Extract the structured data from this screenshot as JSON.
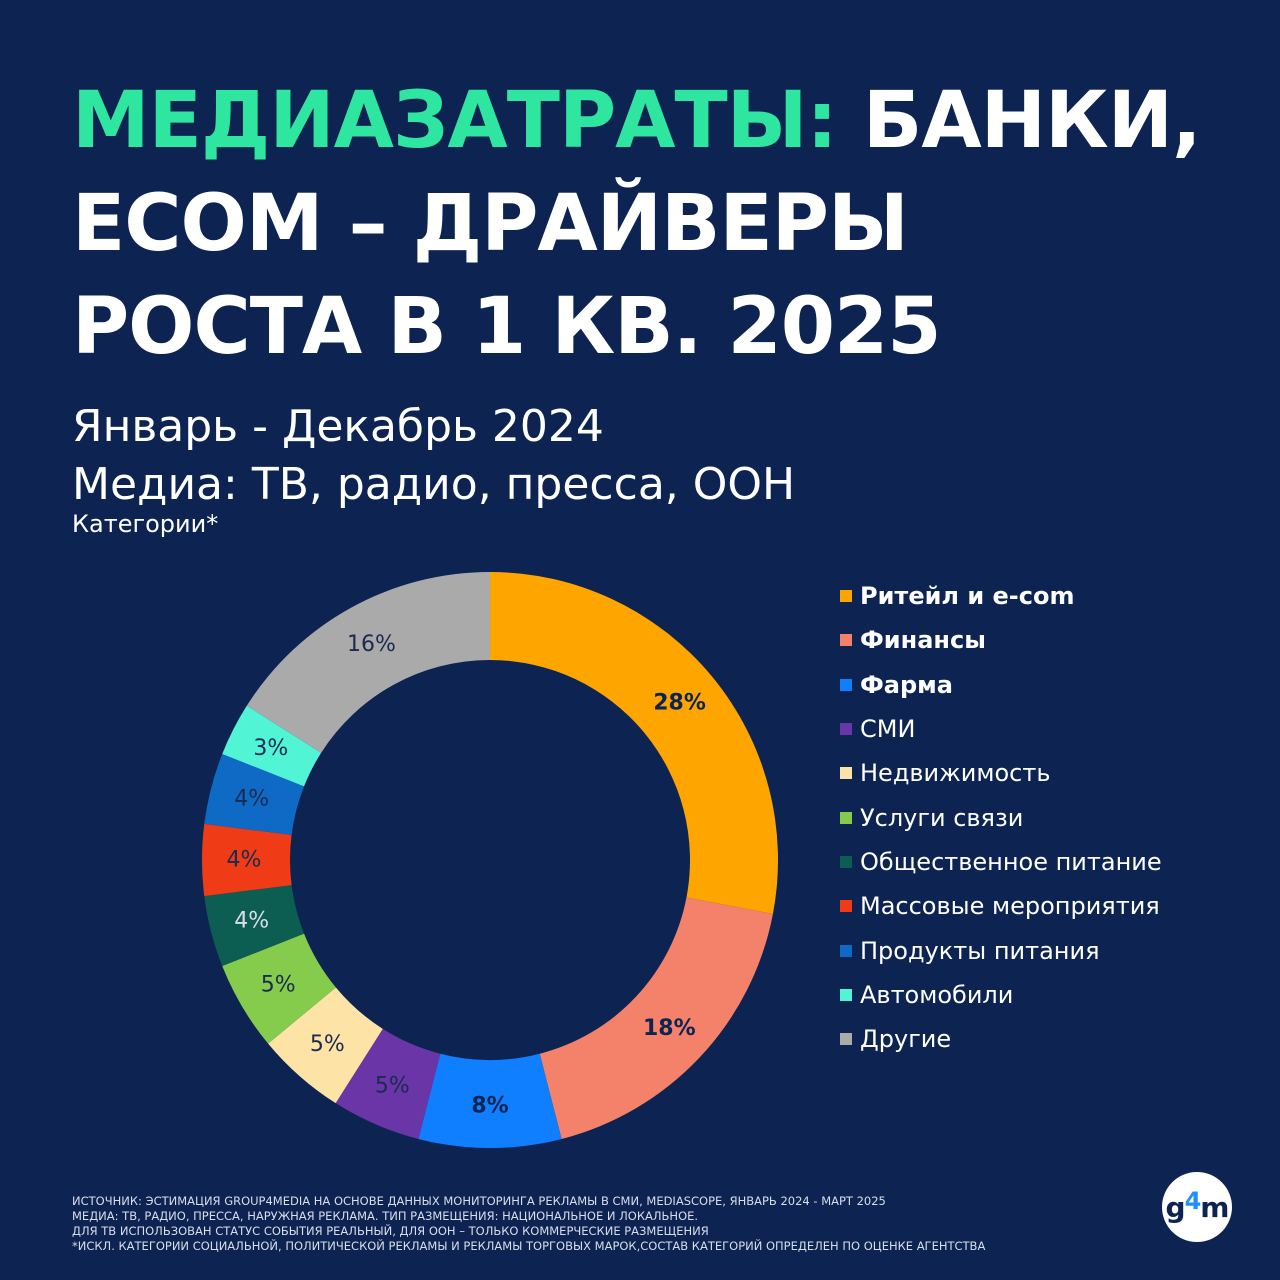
{
  "title": {
    "accent": "МЕДИАЗАТРАТЫ:",
    "line1_rest": "БАНКИ,",
    "line2": "ECOM – ДРАЙВЕРЫ",
    "line3": "РОСТА В 1 КВ. 2025"
  },
  "subtitle": {
    "period": "Январь - Декабрь 2024",
    "media": "Медиа: ТВ, радио, пресса, ООН"
  },
  "categories_label": "Категории*",
  "chart_data": {
    "type": "pie",
    "donut": true,
    "slices": [
      {
        "label": "Ритейл и e-com",
        "value": 28,
        "value_label": "28%",
        "color": "#ffa500",
        "bold": true,
        "text_color": "#0d2452"
      },
      {
        "label": "Финансы",
        "value": 18,
        "value_label": "18%",
        "color": "#f4826a",
        "bold": true,
        "text_color": "#0d2452"
      },
      {
        "label": "Фарма",
        "value": 8,
        "value_label": "8%",
        "color": "#0f7fff",
        "bold": true,
        "text_color": "#0d2452"
      },
      {
        "label": "СМИ",
        "value": 5,
        "value_label": "5%",
        "color": "#6a35a6",
        "bold": false,
        "text_color": "#1a2a50"
      },
      {
        "label": "Недвижимость",
        "value": 5,
        "value_label": "5%",
        "color": "#fde3a5",
        "bold": false,
        "text_color": "#1a2a50"
      },
      {
        "label": "Услуги связи",
        "value": 5,
        "value_label": "5%",
        "color": "#86cc4c",
        "bold": false,
        "text_color": "#1a2a50"
      },
      {
        "label": "Общественное питание",
        "value": 4,
        "value_label": "4%",
        "color": "#0c5e53",
        "bold": false,
        "text_color": "#d8deea"
      },
      {
        "label": "Массовые мероприятия",
        "value": 4,
        "value_label": "4%",
        "color": "#ef3b16",
        "bold": false,
        "text_color": "#1a2a50"
      },
      {
        "label": "Продукты питания",
        "value": 4,
        "value_label": "4%",
        "color": "#0f6ac6",
        "bold": false,
        "text_color": "#1a2a50"
      },
      {
        "label": "Автомобили",
        "value": 3,
        "value_label": "3%",
        "color": "#51f5d6",
        "bold": false,
        "text_color": "#1a2a50"
      },
      {
        "label": "Другие",
        "value": 16,
        "value_label": "16%",
        "color": "#aaaaaa",
        "bold": false,
        "text_color": "#1a2a50"
      }
    ]
  },
  "footnote": {
    "line1": "ИСТОЧНИК: ЭСТИМАЦИЯ GROUP4MEDIA НА ОСНОВЕ ДАННЫХ МОНИТОРИНГА РЕКЛАМЫ В СМИ, MEDIASCOPE, ЯНВАРЬ 2024 - МАРТ 2025",
    "line2": "МЕДИА: ТВ, РАДИО, ПРЕССА, НАРУЖНАЯ РЕКЛАМА. ТИП РАЗМЕЩЕНИЯ: НАЦИОНАЛЬНОЕ И ЛОКАЛЬНОЕ.",
    "line3": "ДЛЯ ТВ ИСПОЛЬЗОВАН СТАТУС СОБЫТИЯ РЕАЛЬНЫЙ, ДЛЯ ООН – ТОЛЬКО КОММЕРЧЕСКИЕ РАЗМЕЩЕНИЯ",
    "line4": "*ИСКЛ. КАТЕГОРИИ СОЦИАЛЬНОЙ, ПОЛИТИЧЕСКОЙ РЕКЛАМЫ И РЕКЛАМЫ ТОРГОВЫХ МАРОК,СОСТАВ КАТЕГОРИЙ ОПРЕДЕЛЕН ПО ОЦЕНКЕ АГЕНТСТВА"
  },
  "logo": {
    "prefix": "g",
    "digit": "4",
    "suffix": "m"
  }
}
